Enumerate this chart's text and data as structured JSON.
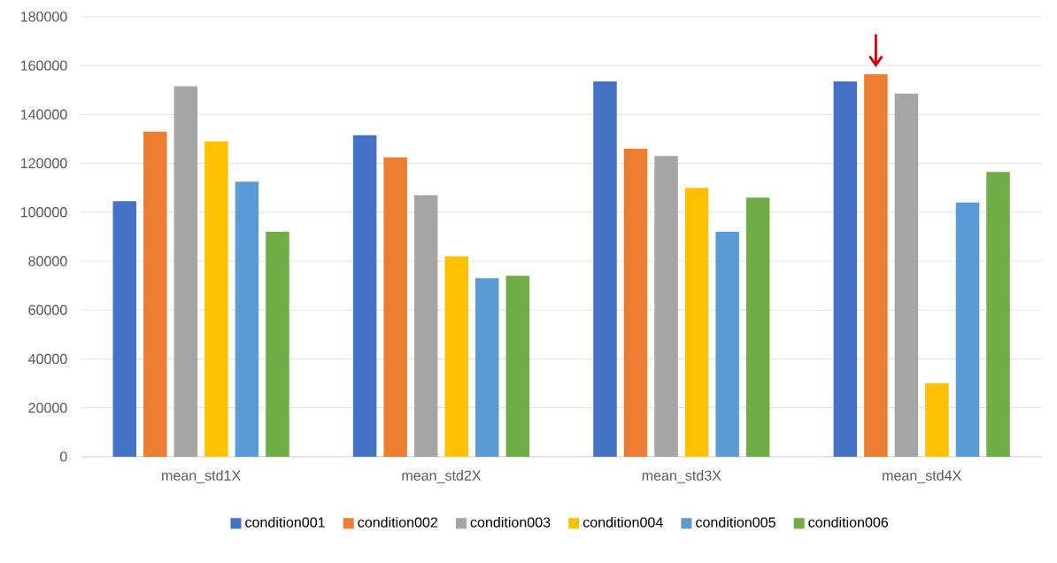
{
  "chart_data": {
    "type": "bar",
    "categories": [
      "mean_std1X",
      "mean_std2X",
      "mean_std3X",
      "mean_std4X"
    ],
    "series": [
      {
        "name": "condition001",
        "color": "#4472c4",
        "values": [
          104500,
          131500,
          153500,
          153500
        ]
      },
      {
        "name": "condition002",
        "color": "#ed7d31",
        "values": [
          133000,
          122500,
          126000,
          156500
        ]
      },
      {
        "name": "condition003",
        "color": "#a5a5a5",
        "values": [
          151500,
          107000,
          123000,
          148500
        ]
      },
      {
        "name": "condition004",
        "color": "#ffc000",
        "values": [
          129000,
          82000,
          110000,
          30000
        ]
      },
      {
        "name": "condition005",
        "color": "#5b9bd5",
        "values": [
          112500,
          73000,
          92000,
          104000
        ]
      },
      {
        "name": "condition006",
        "color": "#70ad47",
        "values": [
          92000,
          74000,
          106000,
          116500
        ]
      }
    ],
    "ylim": [
      0,
      180000
    ],
    "yticks": [
      0,
      20000,
      40000,
      60000,
      80000,
      100000,
      120000,
      140000,
      160000,
      180000
    ],
    "grid": "y",
    "legend": "bottom"
  }
}
